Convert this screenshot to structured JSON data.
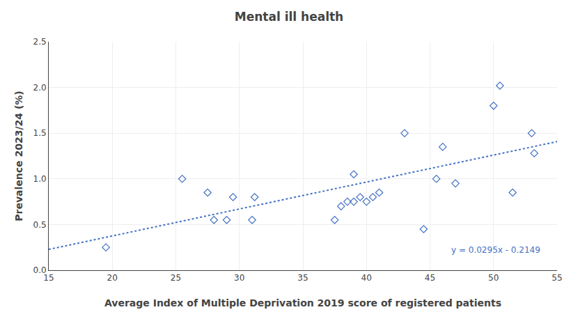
{
  "chart_data": {
    "type": "scatter",
    "title": "Mental ill health",
    "xlabel": "Average Index of Multiple Deprivation 2019 score of registered patients",
    "ylabel": "Prevalence 2023/24 (%)",
    "annotations": [
      {
        "text": "y = 0.0295x - 0.2149",
        "color": "#4472C4"
      }
    ],
    "xlim": [
      15,
      55
    ],
    "ylim": [
      0.0,
      2.5
    ],
    "xticks": [
      15,
      20,
      25,
      30,
      35,
      40,
      45,
      50,
      55
    ],
    "yticks": [
      {
        "value": 0.0,
        "label": "0.0"
      },
      0.5,
      {
        "value": 1.0,
        "label": "1.0"
      },
      1.5,
      {
        "value": 2.0,
        "label": "2.0"
      },
      2.5
    ],
    "grid": true,
    "series": [
      {
        "type": "scatter",
        "marker": "diamond",
        "color": "#4472C4",
        "x": [
          19.5,
          25.5,
          27.5,
          28.0,
          29.0,
          29.5,
          31.0,
          31.2,
          37.5,
          38.0,
          38.5,
          39.0,
          39.0,
          39.5,
          40.0,
          40.5,
          41.0,
          43.0,
          44.5,
          45.5,
          46.0,
          47.0,
          50.0,
          50.5,
          51.5,
          53.0,
          53.2
        ],
        "values": [
          0.25,
          1.0,
          0.85,
          0.55,
          0.55,
          0.8,
          0.55,
          0.8,
          0.55,
          0.7,
          0.75,
          1.05,
          0.75,
          0.8,
          0.75,
          0.8,
          0.85,
          1.5,
          0.45,
          1.0,
          1.35,
          0.95,
          1.8,
          2.02,
          0.85,
          1.5,
          1.28
        ]
      },
      {
        "type": "line",
        "line_style": "dotted",
        "color": "#4472C4",
        "x": [
          15,
          55
        ],
        "values": [
          0.2276,
          1.4076
        ]
      }
    ]
  }
}
